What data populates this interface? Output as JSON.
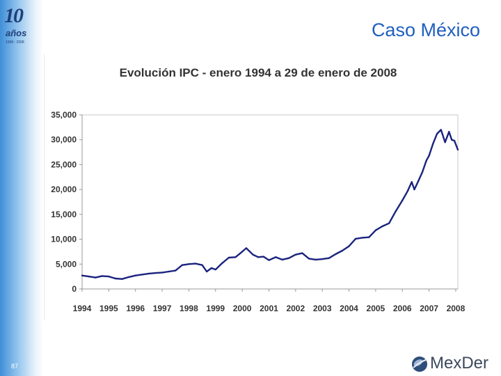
{
  "slide": {
    "title": "Caso México",
    "page_number": "87"
  },
  "logo": {
    "number": "10",
    "word": "años",
    "years": "1998 - 2008"
  },
  "brand": {
    "name": "MexDer"
  },
  "colors": {
    "title": "#1f5fbf",
    "series": "#1a237e",
    "grid": "#c8c8c8"
  },
  "chart_data": {
    "type": "line",
    "title": "Evolución IPC - enero 1994 a 29 de enero de 2008",
    "xlabel": "",
    "ylabel": "",
    "xlim": [
      1994,
      2008.08
    ],
    "ylim": [
      0,
      35000
    ],
    "xticks": [
      "1994",
      "1995",
      "1996",
      "1997",
      "1998",
      "1999",
      "2000",
      "2001",
      "2002",
      "2003",
      "2004",
      "2005",
      "2006",
      "2007",
      "2008"
    ],
    "yticks": [
      "35,000",
      "30,000",
      "25,000",
      "20,000",
      "15,000",
      "10,000",
      "5,000",
      "0"
    ],
    "grid": false,
    "series": [
      {
        "name": "IPC",
        "x": [
          1994.0,
          1994.25,
          1994.5,
          1994.75,
          1995.0,
          1995.25,
          1995.5,
          1995.75,
          1996.0,
          1996.25,
          1996.5,
          1996.75,
          1997.0,
          1997.25,
          1997.5,
          1997.75,
          1998.0,
          1998.25,
          1998.5,
          1998.67,
          1998.85,
          1999.0,
          1999.25,
          1999.5,
          1999.75,
          2000.0,
          2000.15,
          2000.4,
          2000.6,
          2000.8,
          2001.0,
          2001.25,
          2001.5,
          2001.75,
          2002.0,
          2002.25,
          2002.5,
          2002.75,
          2003.0,
          2003.25,
          2003.5,
          2003.75,
          2004.0,
          2004.25,
          2004.5,
          2004.75,
          2005.0,
          2005.25,
          2005.5,
          2005.75,
          2006.0,
          2006.2,
          2006.35,
          2006.45,
          2006.6,
          2006.75,
          2006.9,
          2007.0,
          2007.15,
          2007.3,
          2007.45,
          2007.6,
          2007.75,
          2007.85,
          2007.95,
          2008.08
        ],
        "values": [
          2700,
          2500,
          2300,
          2600,
          2500,
          2100,
          2000,
          2400,
          2700,
          2900,
          3100,
          3200,
          3300,
          3500,
          3700,
          4800,
          5000,
          5100,
          4800,
          3500,
          4200,
          3900,
          5200,
          6300,
          6400,
          7500,
          8200,
          6900,
          6400,
          6500,
          5800,
          6400,
          5900,
          6200,
          6900,
          7200,
          6100,
          5900,
          6000,
          6200,
          7000,
          7700,
          8600,
          10100,
          10300,
          10400,
          11800,
          12600,
          13200,
          15600,
          17800,
          19700,
          21500,
          20000,
          21700,
          23500,
          25800,
          26800,
          29200,
          31200,
          32000,
          29500,
          31600,
          30000,
          29800,
          28000
        ]
      }
    ]
  }
}
